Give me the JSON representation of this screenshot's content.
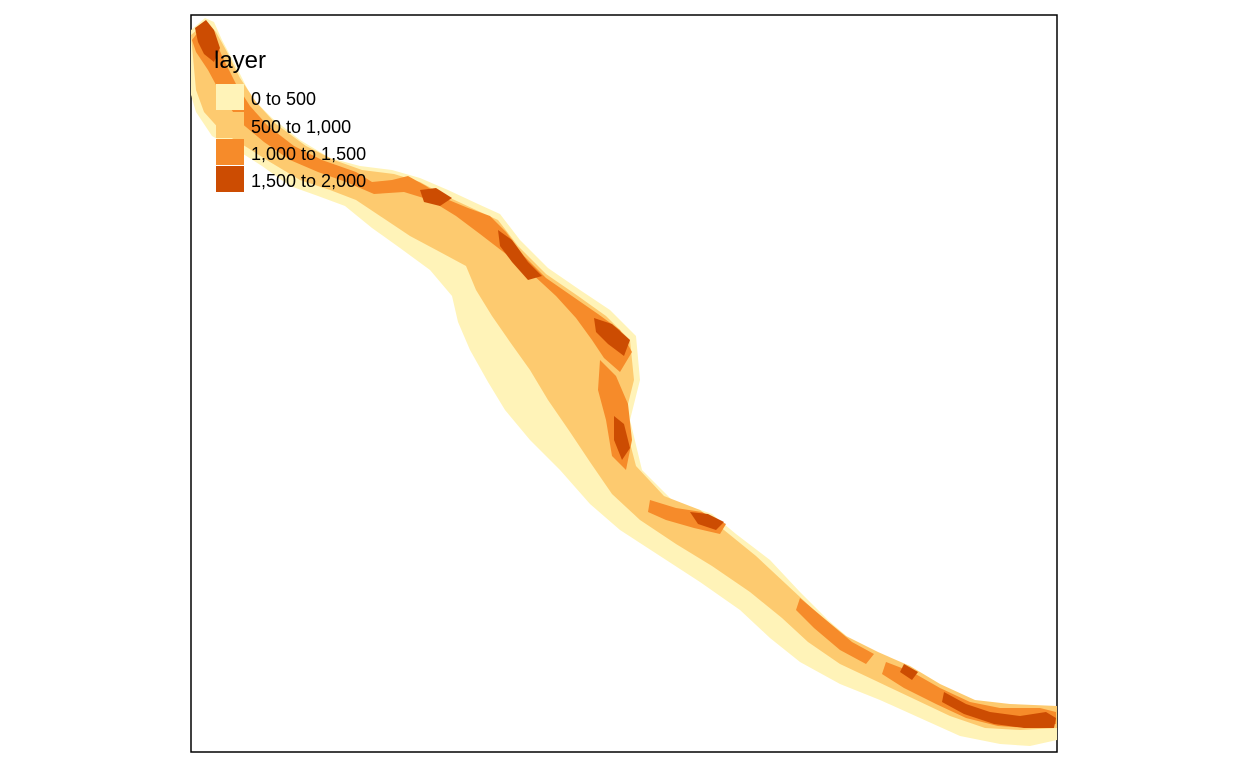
{
  "legend": {
    "title": "layer",
    "classes": [
      {
        "label": "0 to 500",
        "color": "#FFF3B8"
      },
      {
        "label": "500 to 1,000",
        "color": "#FDCA6F"
      },
      {
        "label": "1,000 to 1,500",
        "color": "#F68B2A"
      },
      {
        "label": "1,500 to 2,000",
        "color": "#CC4C02"
      }
    ]
  },
  "colors": {
    "frame": "#000000",
    "background": "#FFFFFF"
  }
}
